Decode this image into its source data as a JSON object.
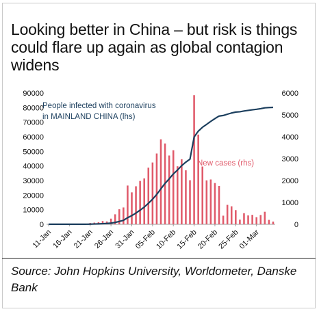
{
  "title": "Looking better in China – but risk is things could flare up again as global contagion widens",
  "source": "Source: John Hopkins University, Worldometer, Danske Bank",
  "colors": {
    "infected_line": "#1c3f5e",
    "new_cases_bars": "#e05a6a",
    "axis": "#9a9a9a"
  },
  "chart_data": {
    "type": "bar+line",
    "x_tick_labels": [
      "11-Jan",
      "16-Jan",
      "21-Jan",
      "26-Jan",
      "31-Jan",
      "05-Feb",
      "10-Feb",
      "15-Feb",
      "20-Feb",
      "25-Feb",
      "01-Mar"
    ],
    "y_left": {
      "label": "",
      "ticks": [
        0,
        10000,
        20000,
        30000,
        40000,
        50000,
        60000,
        70000,
        80000,
        90000
      ],
      "range": [
        0,
        90000
      ]
    },
    "y_right": {
      "label": "",
      "ticks": [
        0,
        1000,
        2000,
        3000,
        4000,
        5000,
        6000
      ],
      "range": [
        0,
        6000
      ]
    },
    "series": [
      {
        "name": "People infected with coronavirus in MAINLAND CHINA (lhs)",
        "label_line1": "People infected  with coronavirus",
        "label_line2": "in MAINLAND CHINA (lhs)",
        "type": "line",
        "axis": "left",
        "start_day": 0,
        "values": [
          41,
          41,
          41,
          41,
          41,
          41,
          41,
          41,
          45,
          62,
          121,
          198,
          291,
          440,
          571,
          830,
          1287,
          1975,
          2744,
          4515,
          5974,
          7711,
          9692,
          11791,
          14380,
          17205,
          20438,
          24324,
          28018,
          31161,
          34546,
          37198,
          40171,
          42638,
          44653,
          59804,
          63851,
          66492,
          68500,
          70548,
          72436,
          74185,
          74576,
          75465,
          76288,
          76936,
          77150,
          77658,
          78064,
          78497,
          78824,
          79251,
          79824,
          80026,
          80151
        ]
      },
      {
        "name": "New cases (rhs)",
        "label": "New cases (rhs)",
        "type": "bar",
        "axis": "right",
        "start_day": 8,
        "values": [
          4,
          17,
          59,
          77,
          93,
          149,
          131,
          259,
          457,
          688,
          769,
          1771,
          1459,
          1737,
          1981,
          2099,
          2589,
          2825,
          3235,
          3884,
          3694,
          3143,
          3385,
          2652,
          2973,
          2467,
          2015,
          5900,
          4100,
          2640,
          2009,
          2048,
          1886,
          1749,
          394,
          889,
          823,
          648,
          214,
          508,
          406,
          433,
          327,
          427,
          573,
          202,
          125
        ]
      }
    ]
  }
}
